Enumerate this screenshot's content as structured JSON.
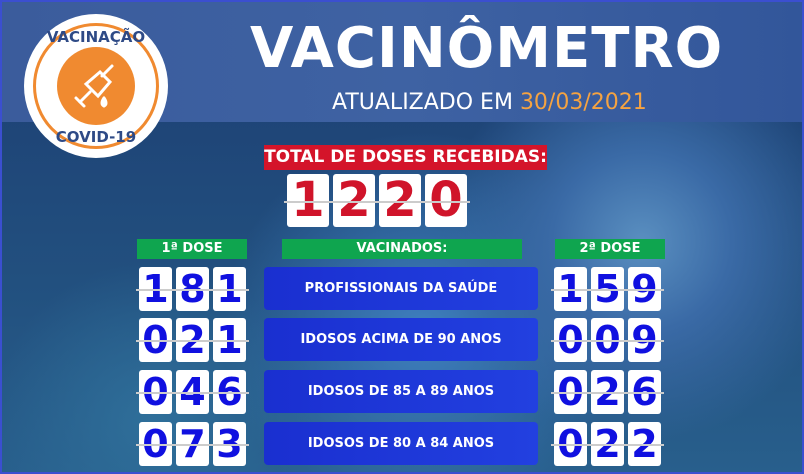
{
  "logo": {
    "top_text": "VACINAÇÃO",
    "bottom_text": "COVID-19",
    "icon": "syringe-icon"
  },
  "title": "VACINÔMETRO",
  "updated_label": "ATUALIZADO EM",
  "updated_date": "30/03/2021",
  "total_label": "TOTAL DE DOSES RECEBIDAS:",
  "total_digits": [
    "1",
    "2",
    "2",
    "0"
  ],
  "headers": {
    "dose1": "1ª DOSE",
    "vaccinated": "VACINADOS:",
    "dose2": "2ª DOSE"
  },
  "rows": [
    {
      "category": "PROFISSIONAIS DA SAÚDE",
      "dose1": [
        "1",
        "8",
        "1"
      ],
      "dose2": [
        "1",
        "5",
        "9"
      ]
    },
    {
      "category": "IDOSOS  ACIMA DE 90 ANOS",
      "dose1": [
        "0",
        "2",
        "1"
      ],
      "dose2": [
        "0",
        "0",
        "9"
      ]
    },
    {
      "category": "IDOSOS DE  85 A 89 ANOS",
      "dose1": [
        "0",
        "4",
        "6"
      ],
      "dose2": [
        "0",
        "2",
        "6"
      ]
    },
    {
      "category": "IDOSOS DE 80 A 84 ANOS",
      "dose1": [
        "0",
        "7",
        "3"
      ],
      "dose2": [
        "0",
        "2",
        "2"
      ]
    }
  ],
  "colors": {
    "red": "#d4142a",
    "green": "#0fa54f",
    "orange": "#f08a30",
    "digit_blue": "#1010e0"
  }
}
